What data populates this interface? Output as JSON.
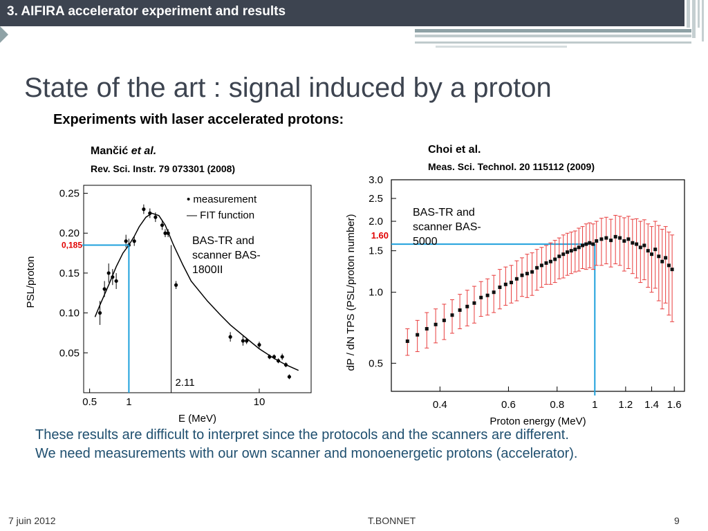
{
  "header": {
    "section_title": "3. AIFIRA accelerator experiment and results"
  },
  "slide": {
    "title": "State of the art : signal induced by a proton",
    "subtitle": "Experiments with laser accelerated protons:"
  },
  "left_ref": {
    "authors": "Mančić ",
    "et_al": "et al.",
    "journal": "Rev. Sci. Instr. 79  073301 (2008)"
  },
  "right_ref": {
    "authors": "Choi et al.",
    "journal": "Meas. Sci. Technol. 20  115112 (2009)"
  },
  "left_note": "BAS-TR and scanner BAS-1800II",
  "right_note": "BAS-TR and scanner BAS-5000",
  "body": {
    "line1": "These results are difficult to interpret since the protocols and the scanners are different.",
    "line2": "We need measurements with our own scanner and monoenergetic protons (accelerator)."
  },
  "footer": {
    "date": "7  juin 2012",
    "author": "T.BONNET",
    "page": "9"
  },
  "colors": {
    "header_bg": "#3d4450",
    "title": "#3d4450",
    "body_text": "#1f4f6f",
    "marker_line": "#1ea0dc",
    "marker_label": "#e00000",
    "error_bars": "#e83c3c"
  },
  "chart_data": [
    {
      "type": "scatter",
      "xlabel": "E (MeV)",
      "ylabel": "PSL/proton",
      "xscale": "log",
      "xlim": [
        0.45,
        25
      ],
      "ylim": [
        0.0,
        0.26
      ],
      "xticks": [
        {
          "v": 0.5,
          "label": "0.5"
        },
        {
          "v": 1,
          "label": "1"
        },
        {
          "v": 10,
          "label": "10"
        }
      ],
      "yticks": [
        {
          "v": 0.05,
          "label": "0.05"
        },
        {
          "v": 0.1,
          "label": "0.10"
        },
        {
          "v": 0.15,
          "label": "0.15"
        },
        {
          "v": 0.2,
          "label": "0.20"
        },
        {
          "v": 0.25,
          "label": "0.25"
        }
      ],
      "legend": {
        "measurement": "• measurement",
        "fit": "— FIT function"
      },
      "annotation_x": {
        "value": 2.11,
        "label": "2.11"
      },
      "marker": {
        "x": 1.0,
        "y": 0.185,
        "label": "0,185"
      },
      "series": [
        {
          "name": "measurement",
          "x": [
            0.6,
            0.65,
            0.7,
            0.75,
            0.8,
            0.95,
            1.0,
            1.1,
            1.3,
            1.45,
            1.6,
            1.8,
            1.9,
            2.0,
            2.3,
            6.0,
            7.5,
            8.0,
            10.0,
            12.0,
            13.0,
            14.0,
            15.0,
            16.0,
            17.0
          ],
          "y": [
            0.1,
            0.13,
            0.15,
            0.145,
            0.14,
            0.19,
            0.185,
            0.19,
            0.23,
            0.225,
            0.22,
            0.21,
            0.2,
            0.2,
            0.135,
            0.07,
            0.065,
            0.065,
            0.06,
            0.045,
            0.045,
            0.04,
            0.045,
            0.035,
            0.02
          ],
          "err": [
            0.015,
            0.01,
            0.012,
            0.01,
            0.01,
            0.008,
            0.008,
            0.006,
            0.006,
            0.006,
            0.006,
            0.006,
            0.005,
            0.005,
            0.005,
            0.006,
            0.006,
            0.004,
            0.004,
            0.003,
            0.003,
            0.003,
            0.004,
            0.003,
            0.003
          ]
        },
        {
          "name": "FIT function",
          "x": [
            0.55,
            0.6,
            0.7,
            0.8,
            0.9,
            1.0,
            1.1,
            1.2,
            1.35,
            1.5,
            1.7,
            1.9,
            2.2,
            2.6,
            3.0,
            4.0,
            5.0,
            6.0,
            8.0,
            10.0,
            13.0,
            16.0,
            20.0
          ],
          "y": [
            0.095,
            0.11,
            0.135,
            0.158,
            0.175,
            0.185,
            0.196,
            0.208,
            0.22,
            0.225,
            0.222,
            0.21,
            0.185,
            0.16,
            0.14,
            0.115,
            0.098,
            0.085,
            0.068,
            0.055,
            0.043,
            0.035,
            0.028
          ]
        }
      ]
    },
    {
      "type": "scatter",
      "xlabel": "Proton energy (MeV)",
      "ylabel": "dP / dN TPS (PSL/proton number)",
      "xscale": "log",
      "yscale": "log",
      "xlim": [
        0.3,
        1.7
      ],
      "ylim": [
        0.38,
        3.0
      ],
      "xticks": [
        {
          "v": 0.4,
          "label": "0.4"
        },
        {
          "v": 0.6,
          "label": "0.6"
        },
        {
          "v": 0.8,
          "label": "0.8"
        },
        {
          "v": 1.0,
          "label": "1"
        },
        {
          "v": 1.2,
          "label": "1.2"
        },
        {
          "v": 1.4,
          "label": "1.4"
        },
        {
          "v": 1.6,
          "label": "1.6"
        }
      ],
      "yticks": [
        {
          "v": 0.5,
          "label": "0.5"
        },
        {
          "v": 1.0,
          "label": "1.0"
        },
        {
          "v": 1.5,
          "label": "1.5"
        },
        {
          "v": 2.0,
          "label": "2.0"
        },
        {
          "v": 2.5,
          "label": "2.5"
        },
        {
          "v": 3.0,
          "label": "3.0"
        }
      ],
      "marker": {
        "x": 1.0,
        "y": 1.6,
        "label": "1.60"
      },
      "series": [
        {
          "name": "measurement",
          "x": [
            0.33,
            0.35,
            0.37,
            0.39,
            0.41,
            0.43,
            0.45,
            0.47,
            0.49,
            0.51,
            0.53,
            0.55,
            0.57,
            0.59,
            0.61,
            0.63,
            0.65,
            0.67,
            0.69,
            0.71,
            0.73,
            0.75,
            0.77,
            0.79,
            0.81,
            0.83,
            0.85,
            0.87,
            0.89,
            0.91,
            0.93,
            0.95,
            0.97,
            0.99,
            1.01,
            1.04,
            1.07,
            1.1,
            1.13,
            1.16,
            1.19,
            1.22,
            1.25,
            1.28,
            1.31,
            1.34,
            1.37,
            1.4,
            1.43,
            1.46,
            1.49,
            1.52,
            1.55,
            1.58
          ],
          "y": [
            0.62,
            0.66,
            0.7,
            0.73,
            0.76,
            0.8,
            0.84,
            0.87,
            0.9,
            0.95,
            0.97,
            1.0,
            1.05,
            1.08,
            1.1,
            1.14,
            1.18,
            1.2,
            1.22,
            1.27,
            1.3,
            1.33,
            1.35,
            1.38,
            1.42,
            1.45,
            1.48,
            1.5,
            1.52,
            1.55,
            1.58,
            1.6,
            1.62,
            1.6,
            1.65,
            1.68,
            1.7,
            1.66,
            1.72,
            1.7,
            1.65,
            1.68,
            1.62,
            1.6,
            1.55,
            1.58,
            1.5,
            1.45,
            1.52,
            1.42,
            1.35,
            1.4,
            1.3,
            1.25
          ],
          "err": [
            0.08,
            0.1,
            0.12,
            0.12,
            0.13,
            0.13,
            0.14,
            0.15,
            0.16,
            0.16,
            0.17,
            0.18,
            0.2,
            0.2,
            0.2,
            0.22,
            0.22,
            0.25,
            0.25,
            0.25,
            0.25,
            0.25,
            0.27,
            0.28,
            0.28,
            0.3,
            0.3,
            0.3,
            0.3,
            0.32,
            0.32,
            0.35,
            0.35,
            0.35,
            0.35,
            0.38,
            0.38,
            0.38,
            0.4,
            0.4,
            0.42,
            0.42,
            0.42,
            0.45,
            0.45,
            0.45,
            0.45,
            0.45,
            0.48,
            0.5,
            0.5,
            0.5,
            0.5,
            0.5
          ]
        }
      ]
    }
  ]
}
